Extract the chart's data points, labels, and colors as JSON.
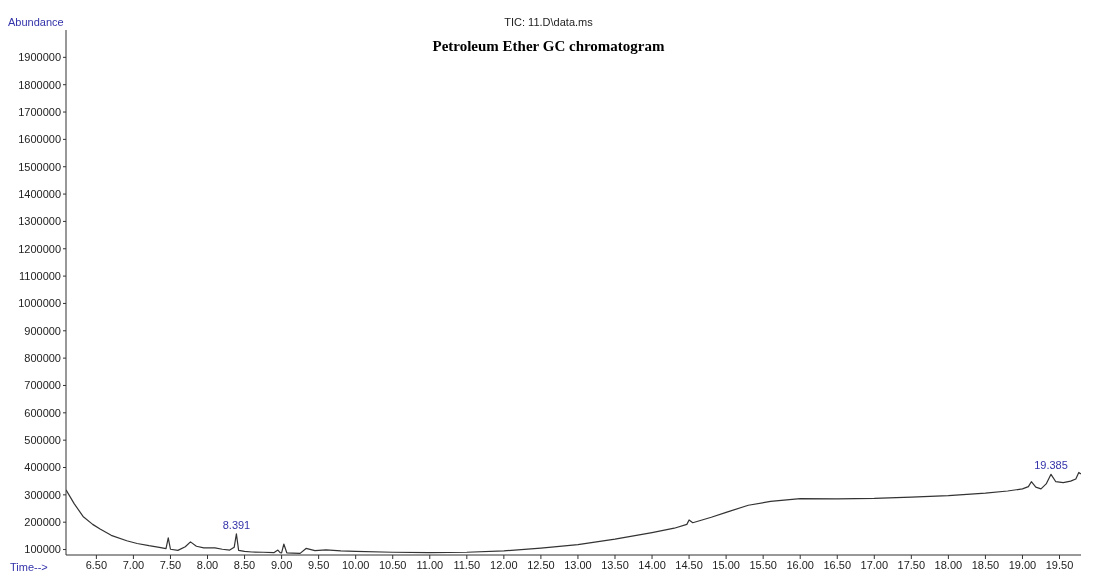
{
  "chart_data": {
    "type": "line",
    "title": "Petroleum Ether GC chromatogram",
    "subtitle": "TIC: 11.D\\data.ms",
    "xlabel": "Time-->",
    "ylabel": "Abundance",
    "annotations": [
      {
        "text": "8.391",
        "x": 8.391,
        "y": 157000
      },
      {
        "text": "19.385",
        "x": 19.385,
        "y": 375000
      }
    ],
    "x": [
      6.09,
      6.2,
      6.32,
      6.45,
      6.55,
      6.7,
      6.91,
      7.05,
      7.21,
      7.35,
      7.44,
      7.47,
      7.5,
      7.6,
      7.7,
      7.77,
      7.85,
      7.95,
      8.1,
      8.2,
      8.3,
      8.36,
      8.39,
      8.42,
      8.5,
      8.6,
      8.75,
      8.9,
      8.95,
      8.98,
      9.0,
      9.03,
      9.07,
      9.15,
      9.25,
      9.33,
      9.45,
      9.6,
      9.8,
      10.0,
      10.5,
      11.0,
      11.5,
      12.0,
      12.5,
      13.0,
      13.5,
      14.0,
      14.3,
      14.47,
      14.5,
      14.55,
      14.8,
      15.0,
      15.3,
      15.6,
      16.0,
      16.5,
      17.0,
      17.5,
      18.0,
      18.5,
      18.8,
      19.0,
      19.08,
      19.12,
      19.18,
      19.25,
      19.32,
      19.385,
      19.45,
      19.55,
      19.65,
      19.72,
      19.76,
      19.79
    ],
    "series": [
      {
        "color": "#333333",
        "values": [
          318000,
          268000,
          221000,
          192000,
          175000,
          152000,
          132000,
          122000,
          114000,
          108000,
          103000,
          143000,
          101000,
          97000,
          110000,
          128000,
          112000,
          106000,
          106000,
          101000,
          98000,
          108000,
          157000,
          97000,
          93000,
          91000,
          90000,
          89000,
          98000,
          89000,
          88000,
          120000,
          88000,
          87000,
          86000,
          104000,
          96000,
          99000,
          95000,
          93000,
          90000,
          89000,
          90000,
          95000,
          105000,
          118000,
          138000,
          162000,
          178000,
          192000,
          208000,
          198000,
          218000,
          236000,
          262000,
          276000,
          286000,
          285000,
          287000,
          292000,
          297000,
          306000,
          314000,
          322000,
          330000,
          348000,
          328000,
          322000,
          340000,
          375000,
          348000,
          345000,
          350000,
          358000,
          382000,
          376000
        ]
      }
    ],
    "xlim": [
      6.09,
      19.79
    ],
    "ylim": [
      80000,
      2000000
    ],
    "xticks": [
      {
        "value": 6.5,
        "label": "6.50"
      },
      {
        "value": 7,
        "label": "7.00"
      },
      {
        "value": 7.5,
        "label": "7.50"
      },
      {
        "value": 8,
        "label": "8.00"
      },
      {
        "value": 8.5,
        "label": "8.50"
      },
      {
        "value": 9,
        "label": "9.00"
      },
      {
        "value": 9.5,
        "label": "9.50"
      },
      {
        "value": 10,
        "label": "10.00"
      },
      {
        "value": 10.5,
        "label": "10.50"
      },
      {
        "value": 11,
        "label": "11.00"
      },
      {
        "value": 11.5,
        "label": "11.50"
      },
      {
        "value": 12,
        "label": "12.00"
      },
      {
        "value": 12.5,
        "label": "12.50"
      },
      {
        "value": 13,
        "label": "13.00"
      },
      {
        "value": 13.5,
        "label": "13.50"
      },
      {
        "value": 14,
        "label": "14.00"
      },
      {
        "value": 14.5,
        "label": "14.50"
      },
      {
        "value": 15,
        "label": "15.00"
      },
      {
        "value": 15.5,
        "label": "15.50"
      },
      {
        "value": 16,
        "label": "16.00"
      },
      {
        "value": 16.5,
        "label": "16.50"
      },
      {
        "value": 17,
        "label": "17.00"
      },
      {
        "value": 17.5,
        "label": "17.50"
      },
      {
        "value": 18,
        "label": "18.00"
      },
      {
        "value": 18.5,
        "label": "18.50"
      },
      {
        "value": 19,
        "label": "19.00"
      },
      {
        "value": 19.5,
        "label": "19.50"
      }
    ],
    "yticks": [
      100000,
      200000,
      300000,
      400000,
      500000,
      600000,
      700000,
      800000,
      900000,
      1000000,
      1100000,
      1200000,
      1300000,
      1400000,
      1500000,
      1600000,
      1700000,
      1800000,
      1900000
    ],
    "grid": false,
    "marker": "none",
    "line_style": "solid"
  }
}
